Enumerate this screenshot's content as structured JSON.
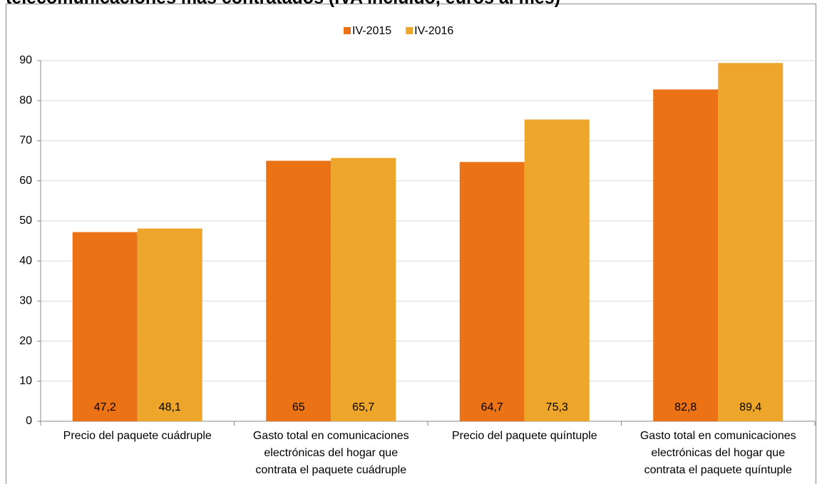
{
  "chart_data": {
    "type": "bar",
    "title": "telecomunicaciones más contratados (IVA incluido, euros al mes)",
    "categories": [
      [
        "Precio del paquete cuádruple"
      ],
      [
        "Gasto total en comunicaciones",
        "electrónicas del hogar que",
        "contrata el paquete cuádruple"
      ],
      [
        "Precio del paquete quíntuple"
      ],
      [
        "Gasto total en comunicaciones",
        "electrónicas del hogar que",
        "contrata el paquete quíntuple"
      ]
    ],
    "series": [
      {
        "name": "IV-2015",
        "color": "#ec7216",
        "values": [
          47.2,
          65,
          64.7,
          82.8
        ],
        "value_labels": [
          "47,2",
          "65",
          "64,7",
          "82,8"
        ]
      },
      {
        "name": "IV-2016",
        "color": "#eda629",
        "values": [
          48.1,
          65.7,
          75.3,
          89.4
        ],
        "value_labels": [
          "48,1",
          "65,7",
          "75,3",
          "89,4"
        ]
      }
    ],
    "ylim": [
      0,
      90
    ],
    "yticks": [
      0,
      10,
      20,
      30,
      40,
      50,
      60,
      70,
      80,
      90
    ],
    "grid": true,
    "legend": "top"
  }
}
